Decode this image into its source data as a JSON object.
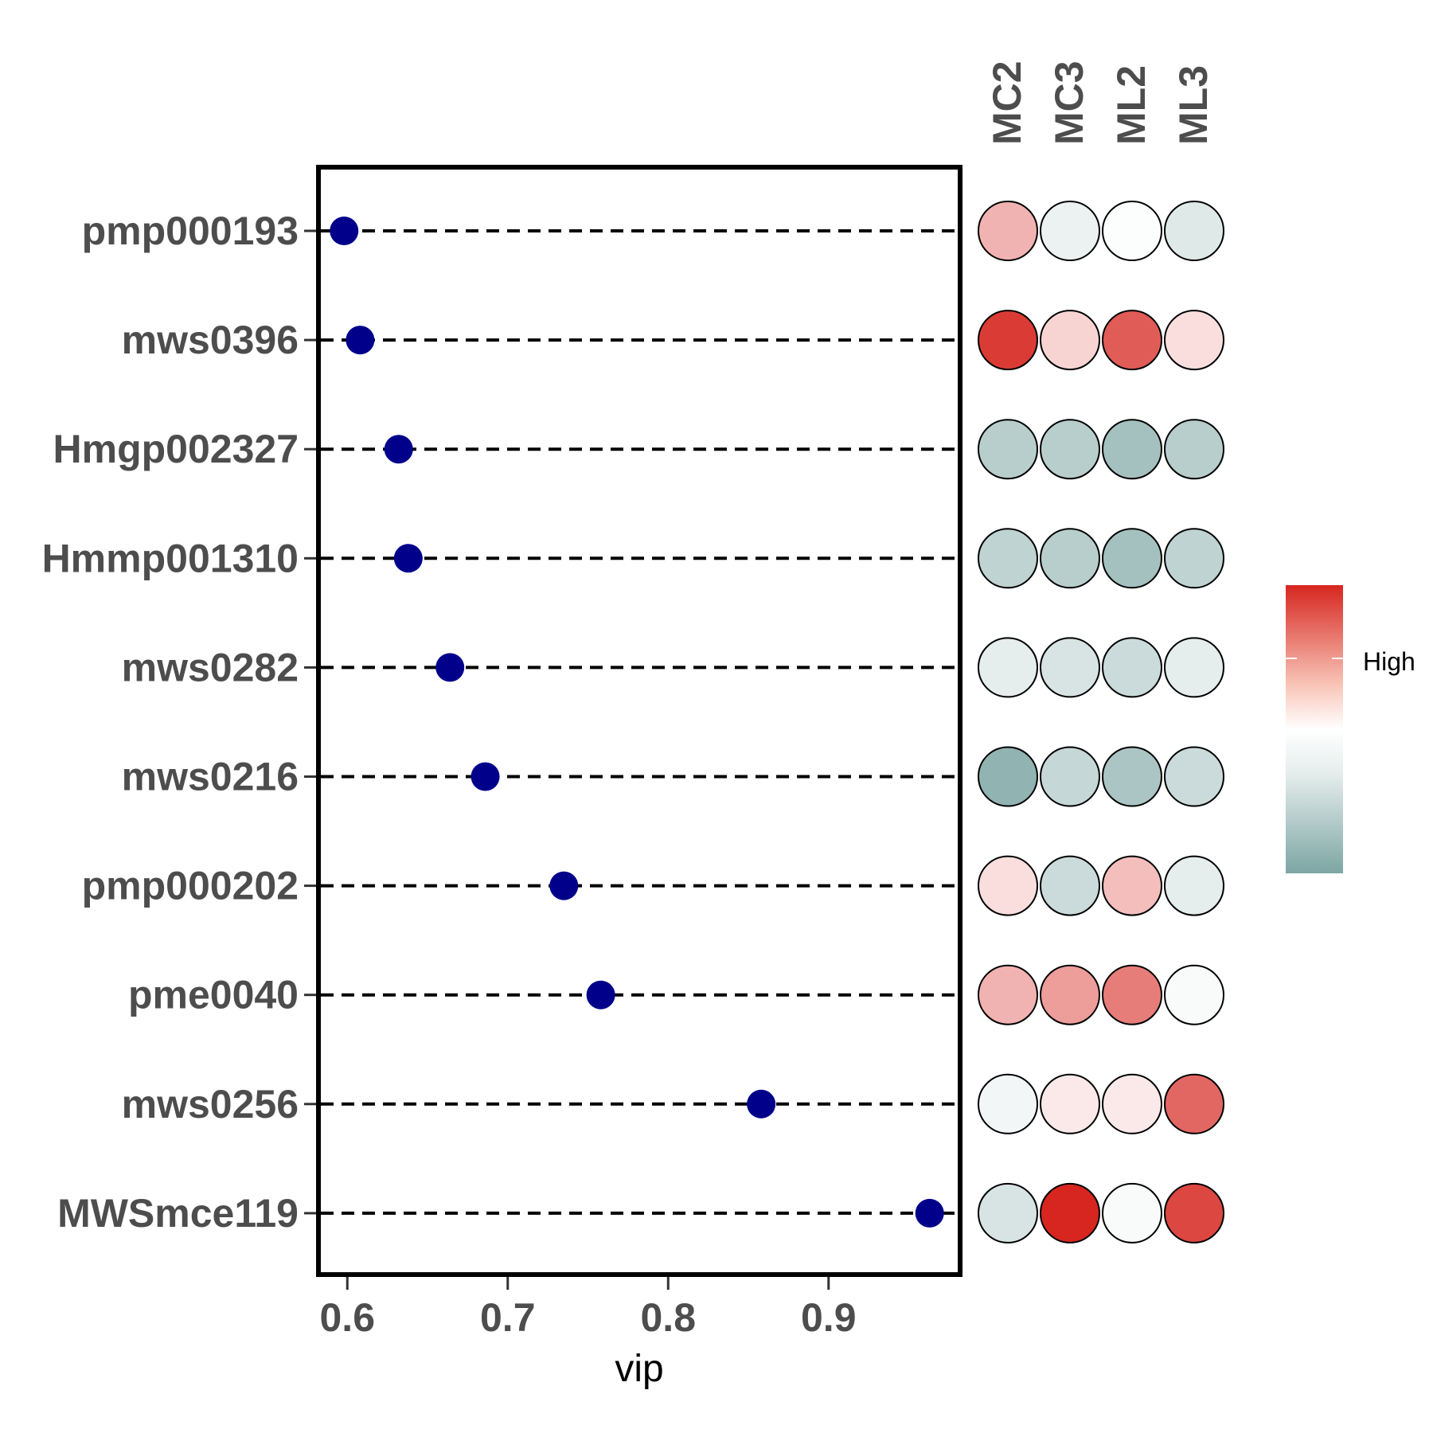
{
  "chart_data": {
    "type": "scatter",
    "xlabel": "vip",
    "xlim": [
      0.582,
      0.982
    ],
    "xticks": [
      0.6,
      0.7,
      0.8,
      0.9
    ],
    "tick_labels": [
      "0.6",
      "0.7",
      "0.8",
      "0.9"
    ],
    "grid": false,
    "point_color": "#00008B",
    "rows": [
      {
        "name": "pmp000193",
        "vip": 0.598
      },
      {
        "name": "mws0396",
        "vip": 0.608
      },
      {
        "name": "Hmgp002327",
        "vip": 0.632
      },
      {
        "name": "Hmmp001310",
        "vip": 0.638
      },
      {
        "name": "mws0282",
        "vip": 0.664
      },
      {
        "name": "mws0216",
        "vip": 0.686
      },
      {
        "name": "pmp000202",
        "vip": 0.735
      },
      {
        "name": "pme0040",
        "vip": 0.758
      },
      {
        "name": "mws0256",
        "vip": 0.858
      },
      {
        "name": "MWSmce119",
        "vip": 0.963
      }
    ],
    "heatmap": {
      "type": "heatmap",
      "columns": [
        "MC2",
        "MC3",
        "ML2",
        "ML3"
      ],
      "scale": [
        -1,
        1
      ],
      "values": [
        [
          0.35,
          -0.15,
          -0.02,
          -0.25
        ],
        [
          0.9,
          0.2,
          0.75,
          0.15
        ],
        [
          -0.55,
          -0.55,
          -0.7,
          -0.55
        ],
        [
          -0.5,
          -0.55,
          -0.7,
          -0.5
        ],
        [
          -0.2,
          -0.3,
          -0.4,
          -0.2
        ],
        [
          -0.85,
          -0.45,
          -0.65,
          -0.4
        ],
        [
          0.15,
          -0.4,
          0.3,
          -0.2
        ],
        [
          0.35,
          0.45,
          0.6,
          -0.05
        ],
        [
          -0.1,
          0.1,
          0.1,
          0.7
        ],
        [
          -0.3,
          1.0,
          -0.05,
          0.85
        ]
      ],
      "low_color": "#7da6a4",
      "mid_color": "#ffffff",
      "high_color": "#d6261f",
      "legend_label": "High",
      "legend_position": "right"
    }
  }
}
